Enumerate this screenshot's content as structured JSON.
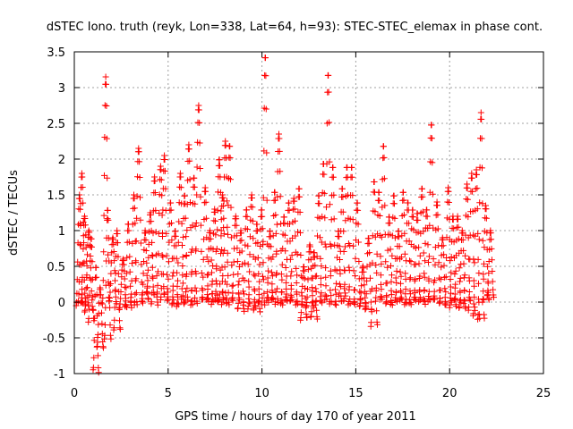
{
  "chart_data": {
    "type": "scatter",
    "title": "dSTEC Iono. truth (reyk, Lon=338, Lat=64, h=93): STEC-STEC_elemax in phase cont.",
    "xlabel": "GPS time / hours of day 170 of year 2011",
    "ylabel": "dSTEC  / TECUs",
    "xlim": [
      0,
      25
    ],
    "ylim": [
      -1,
      3.5
    ],
    "xticks": [
      0,
      5,
      10,
      15,
      20,
      25
    ],
    "yticks": [
      -1,
      -0.5,
      0,
      0.5,
      1,
      1.5,
      2,
      2.5,
      3,
      3.5
    ],
    "xtick_labels": [
      "0",
      "5",
      "10",
      "15",
      "20",
      "25"
    ],
    "ytick_labels": [
      "-1",
      "-0.5",
      "0",
      "0.5",
      "1",
      "1.5",
      "2",
      "2.5",
      "3",
      "3.5"
    ],
    "grid": true,
    "marker": "plus",
    "marker_color": "#ff0000",
    "series": [
      {
        "x_step": 0.02,
        "arcs": [
          [
            0.1,
            0.45,
            1.5,
            -0.05
          ],
          [
            0.2,
            0.6,
            1.8,
            -0.05
          ],
          [
            0.35,
            0.75,
            1.2,
            0.0
          ],
          [
            0.55,
            1.0,
            1.0,
            -0.1
          ],
          [
            0.75,
            1.05,
            0.9,
            -0.3
          ],
          [
            1.0,
            1.3,
            0.5,
            -0.98
          ],
          [
            1.2,
            1.55,
            0.2,
            -0.6
          ],
          [
            1.5,
            1.85,
            3.15,
            0.0
          ],
          [
            1.6,
            1.95,
            1.3,
            -0.55
          ],
          [
            1.85,
            2.25,
            0.9,
            0.0
          ],
          [
            2.1,
            2.45,
            1.0,
            -0.35
          ],
          [
            2.4,
            2.8,
            0.6,
            -0.1
          ],
          [
            2.7,
            3.05,
            1.1,
            -0.1
          ],
          [
            3.0,
            3.35,
            1.5,
            0.0
          ],
          [
            3.2,
            3.65,
            2.15,
            0.0
          ],
          [
            3.6,
            3.95,
            1.0,
            0.0
          ],
          [
            3.85,
            4.25,
            1.25,
            0.1
          ],
          [
            4.1,
            4.45,
            1.75,
            0.0
          ],
          [
            4.4,
            4.8,
            1.9,
            0.1
          ],
          [
            4.6,
            5.0,
            2.05,
            0.0
          ],
          [
            4.95,
            5.3,
            1.4,
            0.0
          ],
          [
            5.2,
            5.55,
            1.0,
            0.0
          ],
          [
            5.45,
            5.85,
            1.8,
            -0.05
          ],
          [
            5.7,
            6.05,
            1.5,
            0.0
          ],
          [
            5.9,
            6.3,
            2.2,
            0.0
          ],
          [
            6.2,
            6.55,
            1.75,
            0.0
          ],
          [
            6.4,
            6.85,
            2.75,
            0.0
          ],
          [
            6.8,
            7.15,
            1.6,
            0.0
          ],
          [
            7.05,
            7.4,
            1.0,
            0.05
          ],
          [
            7.3,
            7.65,
            1.3,
            0.0
          ],
          [
            7.5,
            7.95,
            2.0,
            0.0
          ],
          [
            7.7,
            8.1,
            1.5,
            0.0
          ],
          [
            7.85,
            8.25,
            2.25,
            0.0
          ],
          [
            8.1,
            8.45,
            2.2,
            0.0
          ],
          [
            8.4,
            8.8,
            1.2,
            0.0
          ],
          [
            8.7,
            9.05,
            1.0,
            -0.1
          ],
          [
            9.0,
            9.35,
            1.3,
            0.0
          ],
          [
            9.25,
            9.65,
            1.5,
            -0.1
          ],
          [
            9.55,
            9.9,
            1.1,
            -0.15
          ],
          [
            9.8,
            10.15,
            1.3,
            0.0
          ],
          [
            10.0,
            10.35,
            3.45,
            0.0
          ],
          [
            10.25,
            10.6,
            1.0,
            0.0
          ],
          [
            10.5,
            10.85,
            1.55,
            0.0
          ],
          [
            10.7,
            11.1,
            2.35,
            0.0
          ],
          [
            11.0,
            11.35,
            1.2,
            0.0
          ],
          [
            11.25,
            11.6,
            1.4,
            0.0
          ],
          [
            11.5,
            11.9,
            1.45,
            0.0
          ],
          [
            11.8,
            12.15,
            1.6,
            0.0
          ],
          [
            12.05,
            12.4,
            0.5,
            -0.25
          ],
          [
            12.35,
            12.75,
            0.8,
            -0.1
          ],
          [
            12.6,
            12.95,
            0.7,
            -0.2
          ],
          [
            12.85,
            13.2,
            1.5,
            0.0
          ],
          [
            13.1,
            13.45,
            1.95,
            0.0
          ],
          [
            13.35,
            13.7,
            3.2,
            0.0
          ],
          [
            13.6,
            13.95,
            1.9,
            0.0
          ],
          [
            13.9,
            14.25,
            1.0,
            0.0
          ],
          [
            14.1,
            14.45,
            1.6,
            0.05
          ],
          [
            14.35,
            14.7,
            1.9,
            0.0
          ],
          [
            14.6,
            14.95,
            1.9,
            0.0
          ],
          [
            14.9,
            15.25,
            1.4,
            0.0
          ],
          [
            15.2,
            15.55,
            0.5,
            -0.1
          ],
          [
            15.5,
            15.85,
            0.9,
            -0.1
          ],
          [
            15.8,
            16.15,
            1.7,
            -0.3
          ],
          [
            16.05,
            16.4,
            1.55,
            0.0
          ],
          [
            16.3,
            16.65,
            2.2,
            0.0
          ],
          [
            16.6,
            16.95,
            1.2,
            0.0
          ],
          [
            16.85,
            17.2,
            1.5,
            0.0
          ],
          [
            17.1,
            17.45,
            1.0,
            0.0
          ],
          [
            17.35,
            17.7,
            1.55,
            0.0
          ],
          [
            17.6,
            17.95,
            1.4,
            0.0
          ],
          [
            17.85,
            18.2,
            1.3,
            0.0
          ],
          [
            18.1,
            18.45,
            1.25,
            0.0
          ],
          [
            18.35,
            18.7,
            1.6,
            0.0
          ],
          [
            18.6,
            18.95,
            1.3,
            0.05
          ],
          [
            18.85,
            19.2,
            2.5,
            0.0
          ],
          [
            19.15,
            19.5,
            1.4,
            0.0
          ],
          [
            19.45,
            19.8,
            0.9,
            0.0
          ],
          [
            19.75,
            20.1,
            1.6,
            0.0
          ],
          [
            20.0,
            20.35,
            1.2,
            -0.1
          ],
          [
            20.25,
            20.6,
            1.2,
            0.0
          ],
          [
            20.5,
            20.85,
            1.0,
            -0.05
          ],
          [
            20.75,
            21.1,
            1.65,
            0.0
          ],
          [
            21.0,
            21.35,
            1.8,
            -0.15
          ],
          [
            21.25,
            21.6,
            1.85,
            -0.2
          ],
          [
            21.5,
            21.85,
            2.65,
            -0.2
          ],
          [
            21.75,
            22.1,
            1.35,
            0.0
          ],
          [
            22.0,
            22.35,
            1.0,
            0.05
          ]
        ]
      }
    ]
  }
}
